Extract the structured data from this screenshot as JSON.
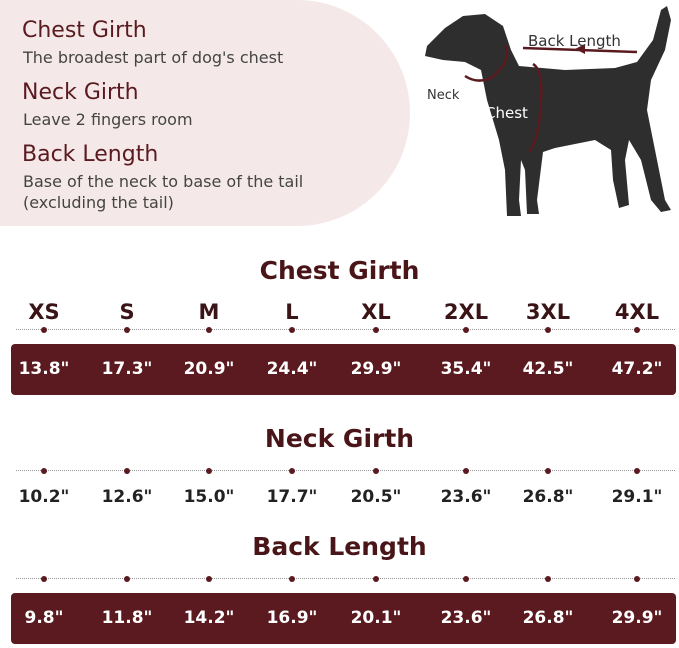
{
  "legend": [
    {
      "title": "Chest Girth",
      "desc": "The broadest part of dog's chest"
    },
    {
      "title": "Neck Girth",
      "desc": "Leave 2 fingers room"
    },
    {
      "title": "Back Length",
      "desc": "Base of the neck to base of the tail",
      "desc2": "(excluding the tail)"
    }
  ],
  "diagram": {
    "back_label": "Back Length",
    "neck_label": "Neck",
    "chest_label": "Chest",
    "accent": "#5a1a1f"
  },
  "sizes": [
    "XS",
    "S",
    "M",
    "L",
    "XL",
    "2XL",
    "3XL",
    "4XL"
  ],
  "sections": [
    {
      "title": "Chest Girth",
      "values": [
        "13.8\"",
        "17.3\"",
        "20.9\"",
        "24.4\"",
        "29.9\"",
        "35.4\"",
        "42.5\"",
        "47.2\""
      ]
    },
    {
      "title": "Neck Girth",
      "values": [
        "10.2\"",
        "12.6\"",
        "15.0\"",
        "17.7\"",
        "20.5\"",
        "23.6\"",
        "26.8\"",
        "29.1\""
      ]
    },
    {
      "title": "Back Length",
      "values": [
        "9.8\"",
        "11.8\"",
        "14.2\"",
        "16.9\"",
        "20.1\"",
        "23.6\"",
        "26.8\"",
        "29.9\""
      ]
    }
  ]
}
